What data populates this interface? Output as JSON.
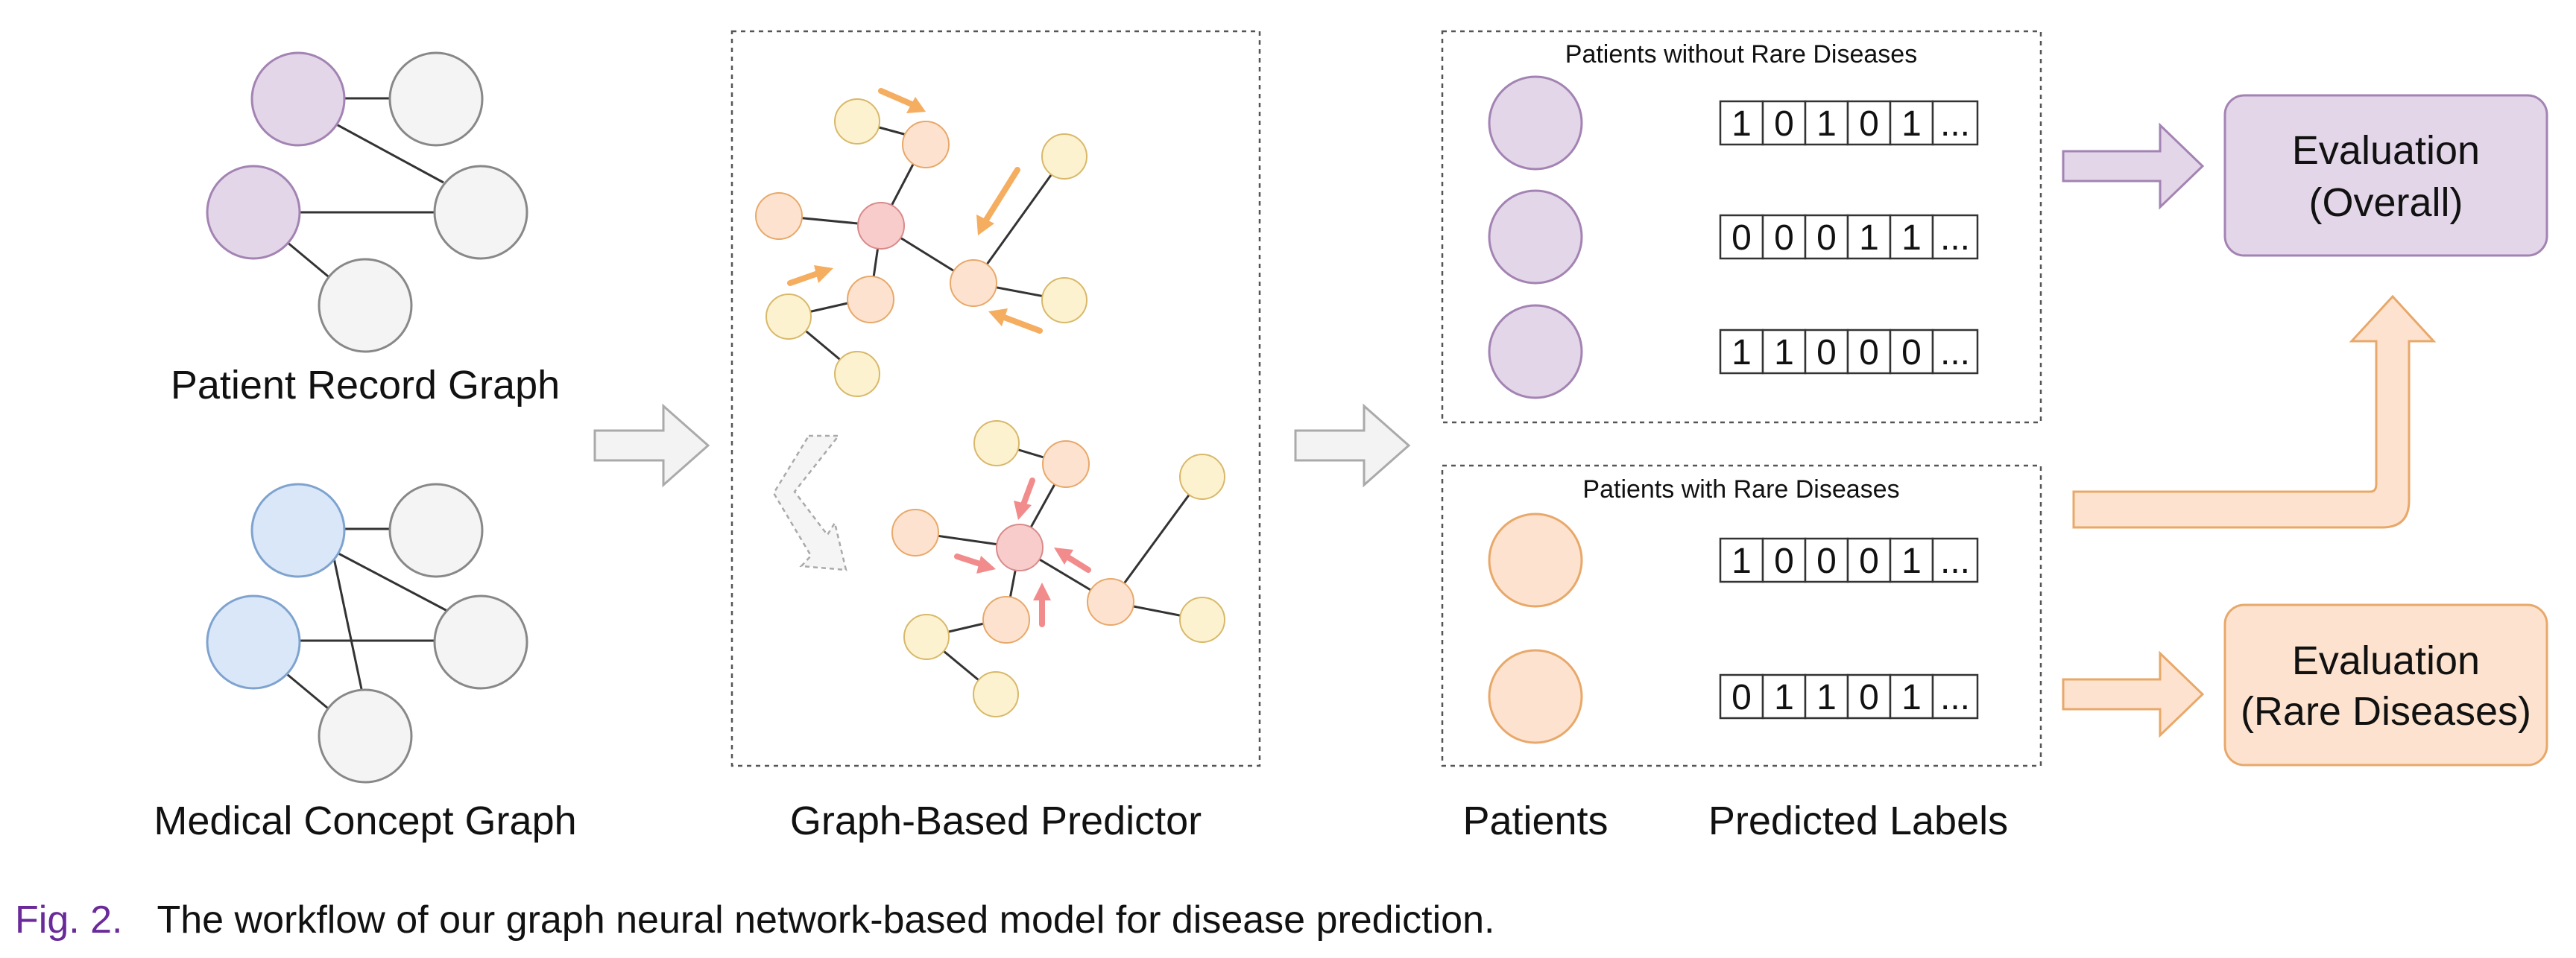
{
  "labels": {
    "patient_record_graph": "Patient Record Graph",
    "medical_concept_graph": "Medical Concept Graph",
    "graph_based_predictor": "Graph-Based Predictor",
    "patients": "Patients",
    "predicted_labels": "Predicted Labels",
    "without_rare_title": "Patients without Rare Diseases",
    "with_rare_title": "Patients with Rare Diseases",
    "eval_overall_line1": "Evaluation",
    "eval_overall_line2": "(Overall)",
    "eval_rare_line1": "Evaluation",
    "eval_rare_line2": "(Rare Diseases)"
  },
  "label_rows_without_rare": [
    [
      "1",
      "0",
      "1",
      "0",
      "1",
      "..."
    ],
    [
      "0",
      "0",
      "0",
      "1",
      "1",
      "..."
    ],
    [
      "1",
      "1",
      "0",
      "0",
      "0",
      "..."
    ]
  ],
  "label_rows_with_rare": [
    [
      "1",
      "0",
      "0",
      "0",
      "1",
      "..."
    ],
    [
      "0",
      "1",
      "1",
      "0",
      "1",
      "..."
    ]
  ],
  "caption": {
    "fig_number": "Fig. 2.",
    "text": "The workflow of our graph neural network-based model for disease prediction."
  },
  "colors": {
    "purple_fill": "#e2d6e8",
    "purple_stroke": "#a383b3",
    "blue_fill": "#dae7f8",
    "orange_fill": "#fde3cf",
    "orange_stroke": "#e8a86a",
    "yellow_fill": "#fdf2cf",
    "red_fill": "#f8cccb",
    "gray_fill": "#f4f4f4",
    "arrow_orange": "#f5ad60",
    "arrow_red": "#f28c8c",
    "caption_accent": "#6a2a9a"
  }
}
